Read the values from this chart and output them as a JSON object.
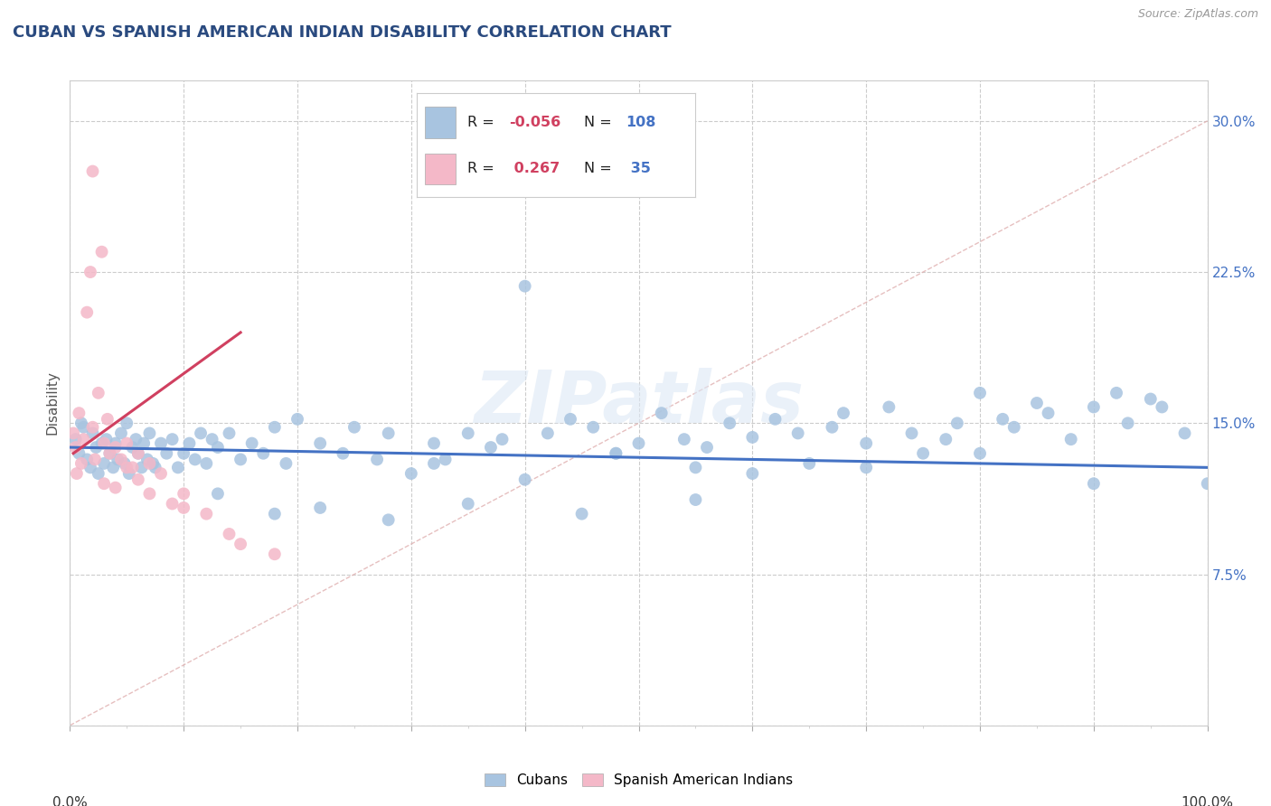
{
  "title": "CUBAN VS SPANISH AMERICAN INDIAN DISABILITY CORRELATION CHART",
  "source": "Source: ZipAtlas.com",
  "ylabel": "Disability",
  "watermark": "ZIPatlas",
  "legend_r_blue": "-0.056",
  "legend_n_blue": "108",
  "legend_r_pink": "0.267",
  "legend_n_pink": "35",
  "blue_color": "#a8c4e0",
  "pink_color": "#f4b8c8",
  "blue_line_color": "#4472c4",
  "pink_line_color": "#d04060",
  "diagonal_color": "#d8c0c0",
  "xlim": [
    0,
    100
  ],
  "ylim": [
    0,
    32
  ],
  "blue_scatter_x": [
    0.5,
    0.8,
    1.0,
    1.2,
    1.5,
    1.8,
    2.0,
    2.3,
    2.5,
    2.8,
    3.0,
    3.2,
    3.5,
    3.8,
    4.0,
    4.2,
    4.5,
    4.8,
    5.0,
    5.2,
    5.5,
    5.8,
    6.0,
    6.3,
    6.5,
    6.8,
    7.0,
    7.3,
    7.5,
    8.0,
    8.5,
    9.0,
    9.5,
    10.0,
    10.5,
    11.0,
    11.5,
    12.0,
    12.5,
    13.0,
    14.0,
    15.0,
    16.0,
    17.0,
    18.0,
    19.0,
    20.0,
    22.0,
    24.0,
    25.0,
    27.0,
    28.0,
    30.0,
    32.0,
    33.0,
    35.0,
    37.0,
    38.0,
    40.0,
    42.0,
    44.0,
    46.0,
    48.0,
    50.0,
    52.0,
    54.0,
    56.0,
    58.0,
    60.0,
    62.0,
    64.0,
    65.0,
    67.0,
    68.0,
    70.0,
    72.0,
    74.0,
    75.0,
    77.0,
    78.0,
    80.0,
    82.0,
    83.0,
    85.0,
    86.0,
    88.0,
    90.0,
    92.0,
    93.0,
    95.0,
    96.0,
    98.0,
    100.0,
    13.0,
    18.0,
    22.0,
    28.0,
    35.0,
    45.0,
    55.0,
    60.0,
    70.0,
    80.0,
    90.0,
    32.0,
    40.0,
    48.0,
    55.0
  ],
  "blue_scatter_y": [
    14.2,
    13.5,
    15.0,
    14.8,
    13.2,
    12.8,
    14.5,
    13.8,
    12.5,
    14.0,
    13.0,
    14.2,
    13.5,
    12.8,
    14.0,
    13.2,
    14.5,
    13.0,
    15.0,
    12.5,
    13.8,
    14.2,
    13.5,
    12.8,
    14.0,
    13.2,
    14.5,
    13.0,
    12.8,
    14.0,
    13.5,
    14.2,
    12.8,
    13.5,
    14.0,
    13.2,
    14.5,
    13.0,
    14.2,
    13.8,
    14.5,
    13.2,
    14.0,
    13.5,
    14.8,
    13.0,
    15.2,
    14.0,
    13.5,
    14.8,
    13.2,
    14.5,
    12.5,
    14.0,
    13.2,
    14.5,
    13.8,
    14.2,
    21.8,
    14.5,
    15.2,
    14.8,
    13.5,
    14.0,
    15.5,
    14.2,
    13.8,
    15.0,
    14.3,
    15.2,
    14.5,
    13.0,
    14.8,
    15.5,
    14.0,
    15.8,
    14.5,
    13.5,
    14.2,
    15.0,
    16.5,
    15.2,
    14.8,
    16.0,
    15.5,
    14.2,
    15.8,
    16.5,
    15.0,
    16.2,
    15.8,
    14.5,
    12.0,
    11.5,
    10.5,
    10.8,
    10.2,
    11.0,
    10.5,
    11.2,
    12.5,
    12.8,
    13.5,
    12.0,
    13.0,
    12.2,
    13.5,
    12.8
  ],
  "pink_scatter_x": [
    0.3,
    0.5,
    0.6,
    0.8,
    1.0,
    1.2,
    1.5,
    1.8,
    2.0,
    2.2,
    2.5,
    2.8,
    3.0,
    3.3,
    3.5,
    4.0,
    4.5,
    5.0,
    5.5,
    6.0,
    7.0,
    8.0,
    10.0,
    12.0,
    14.0,
    18.0,
    3.0,
    5.0,
    7.0,
    9.0,
    2.0,
    4.0,
    6.0,
    10.0,
    15.0
  ],
  "pink_scatter_y": [
    14.5,
    13.8,
    12.5,
    15.5,
    13.0,
    14.2,
    20.5,
    22.5,
    14.8,
    13.2,
    16.5,
    23.5,
    14.0,
    15.2,
    13.5,
    13.8,
    13.2,
    14.0,
    12.8,
    13.5,
    13.0,
    12.5,
    11.5,
    10.5,
    9.5,
    8.5,
    12.0,
    12.8,
    11.5,
    11.0,
    27.5,
    11.8,
    12.2,
    10.8,
    9.0
  ],
  "pink_line_x": [
    0.3,
    15.0
  ],
  "pink_line_y": [
    13.5,
    19.5
  ],
  "blue_line_x": [
    0,
    100
  ],
  "blue_line_y": [
    13.8,
    12.8
  ]
}
